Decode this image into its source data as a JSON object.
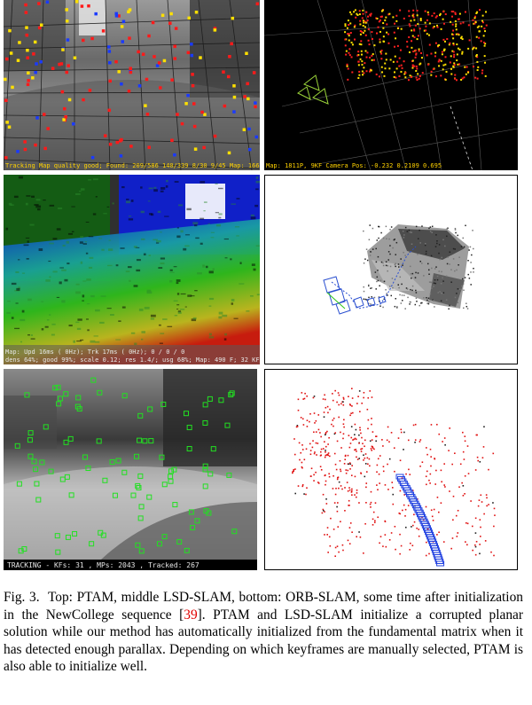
{
  "panels": {
    "ptam_camera": {
      "status": "Tracking Map quality good; Found: 209/586 140/339 8/30 9/45 Map: 1664P, 8KF Add"
    },
    "ptam_map": {
      "status": "Map: 1811P, 9KF    Camera Pos: -0.232 0.2109 0.695"
    },
    "lsd_camera": {
      "status_line1": "Map: Upd  16ms ( 0Hz); Trk  17ms ( 0Hz); 0 / 0 / 0",
      "status_line2": "dens 64%; good 99%; scale 0.12; res 1.4/; usg 68%; Map: 490 F; 32 KF; 17"
    },
    "orb_camera": {
      "status": "TRACKING  - KFs: 31 , MPs: 2043 , Tracked: 267"
    }
  },
  "caption": {
    "label": "Fig. 3.",
    "text_before_ref": "Top: PTAM, middle LSD-SLAM, bottom: ORB-SLAM, some time after initialization in the NewCollege sequence [",
    "ref": "39",
    "text_after_ref": "]. PTAM and LSD-SLAM initialize a corrupted planar solution while our method has automatically initialized from the fundamental matrix when it has detected enough parallax. Depending on which keyframes are manually selected, PTAM is also able to initialize well."
  }
}
